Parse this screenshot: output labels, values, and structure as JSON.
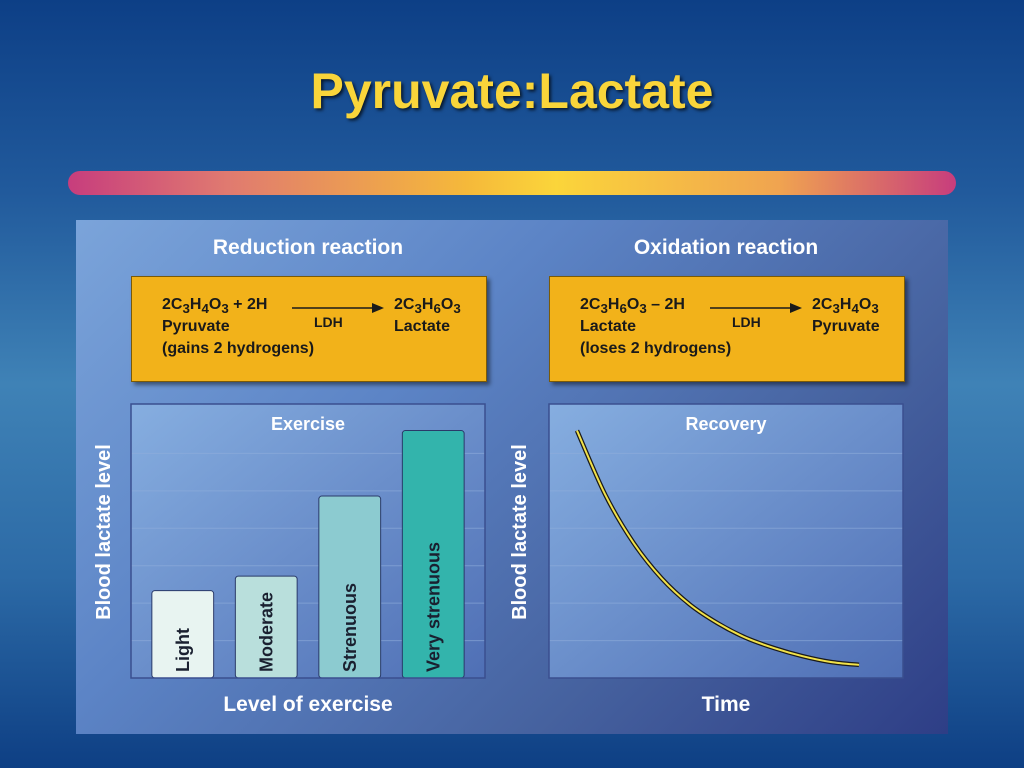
{
  "slide": {
    "title": "Pyruvate:Lactate"
  },
  "reduction": {
    "heading": "Reduction reaction",
    "left_formula_html": "2C<sub>3</sub>H<sub>4</sub>O<sub>3</sub> + 2H",
    "left_name": "Pyruvate",
    "left_note": "(gains 2 hydrogens)",
    "enzyme": "LDH",
    "right_formula_html": "2C<sub>3</sub>H<sub>6</sub>O<sub>3</sub>",
    "right_name": "Lactate"
  },
  "oxidation": {
    "heading": "Oxidation reaction",
    "left_formula_html": "2C<sub>3</sub>H<sub>6</sub>O<sub>3</sub> – 2H",
    "left_name": "Lactate",
    "left_note": "(loses 2 hydrogens)",
    "enzyme": "LDH",
    "right_formula_html": "2C<sub>3</sub>H<sub>4</sub>O<sub>3</sub>",
    "right_name": "Pyruvate"
  },
  "colors": {
    "bars": [
      "#e8f4f1",
      "#b9dfdc",
      "#8ccbd0",
      "#33b4ac"
    ],
    "curve": "#f2e24a"
  },
  "chart_data": [
    {
      "type": "bar",
      "title": "Exercise",
      "xlabel": "Level of exercise",
      "ylabel": "Blood lactate level",
      "categories": [
        "Light",
        "Moderate",
        "Strenuous",
        "Very strenuous"
      ],
      "values": [
        1.2,
        1.4,
        2.5,
        3.4
      ],
      "ylim": [
        0,
        3.6
      ],
      "grid": true
    },
    {
      "type": "line",
      "title": "Recovery",
      "xlabel": "Time",
      "ylabel": "Blood lactate level",
      "x": [
        0,
        1,
        2,
        3,
        4,
        5,
        6,
        7,
        8,
        9,
        10
      ],
      "y": [
        3.4,
        2.52,
        1.86,
        1.37,
        1.01,
        0.75,
        0.55,
        0.41,
        0.3,
        0.22,
        0.18
      ],
      "ylim": [
        0,
        3.6
      ],
      "grid": true
    }
  ]
}
